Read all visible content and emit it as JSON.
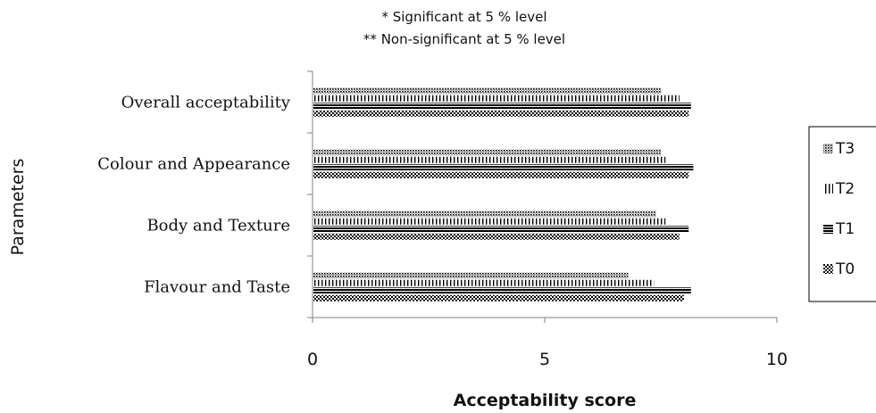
{
  "notes": [
    "* Significant at 5 % level",
    "** Non-significant at 5 % level"
  ],
  "chart_data": {
    "type": "bar",
    "orientation": "horizontal",
    "categories": [
      "Flavour and Taste",
      "Body and Texture",
      "Colour and Appearance",
      "Overall acceptability"
    ],
    "series": [
      {
        "name": "T0",
        "values": [
          8.0,
          7.9,
          8.1,
          8.1
        ],
        "pattern": "checker"
      },
      {
        "name": "T1",
        "values": [
          8.15,
          8.1,
          8.2,
          8.15
        ],
        "pattern": "horizontal-lines"
      },
      {
        "name": "T2",
        "values": [
          7.35,
          7.6,
          7.6,
          7.9
        ],
        "pattern": "vertical-lines"
      },
      {
        "name": "T3",
        "values": [
          6.8,
          7.4,
          7.5,
          7.5
        ],
        "pattern": "dots"
      }
    ],
    "xlabel": "Acceptability score",
    "ylabel": "Parameters",
    "xlim": [
      0,
      10
    ],
    "xticks": [
      "0",
      "5",
      "10"
    ],
    "legend_position": "right",
    "legend_order": [
      "T3",
      "T2",
      "T1",
      "T0"
    ],
    "grid": false
  }
}
